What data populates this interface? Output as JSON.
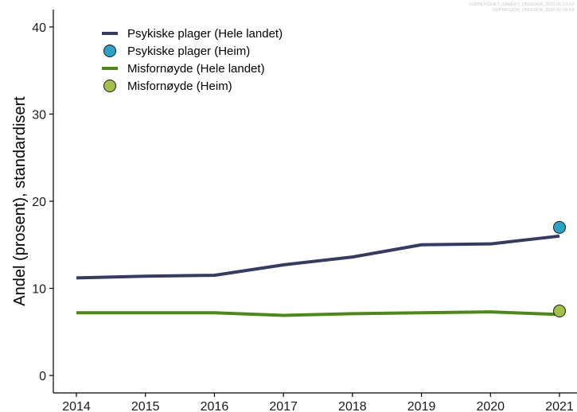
{
  "watermark": {
    "line1": "FORNOYDHET_SAMLET_UNGDATA_2022-01-19-12-",
    "line2": "DEPRESJON_UNGDATA_2022-02-08-09-"
  },
  "chart_data": {
    "type": "line",
    "title": "",
    "xlabel": "",
    "ylabel": "Andel (prosent), standardisert",
    "x": [
      2014,
      2015,
      2016,
      2017,
      2018,
      2019,
      2020,
      2021
    ],
    "ylim": [
      -2,
      42
    ],
    "yticks": [
      0,
      10,
      20,
      30,
      40
    ],
    "grid": false,
    "legend_position": "top-left",
    "series": [
      {
        "name": "Psykiske plager (Hele landet)",
        "kind": "line",
        "color": "#363b63",
        "values": [
          11.2,
          11.4,
          11.5,
          12.7,
          13.6,
          15.0,
          15.1,
          16.0
        ]
      },
      {
        "name": "Psykiske plager (Heim)",
        "kind": "point",
        "color": "#2aa1c7",
        "points": [
          {
            "x": 2021,
            "y": 17.0
          }
        ]
      },
      {
        "name": "Misfornøyde (Hele landet)",
        "kind": "line",
        "color": "#4c8a17",
        "values": [
          7.2,
          7.2,
          7.2,
          6.9,
          7.1,
          7.2,
          7.3,
          7.0
        ]
      },
      {
        "name": "Misfornøyde (Heim)",
        "kind": "point",
        "color": "#a2c046",
        "points": [
          {
            "x": 2021,
            "y": 7.4
          }
        ]
      }
    ]
  }
}
